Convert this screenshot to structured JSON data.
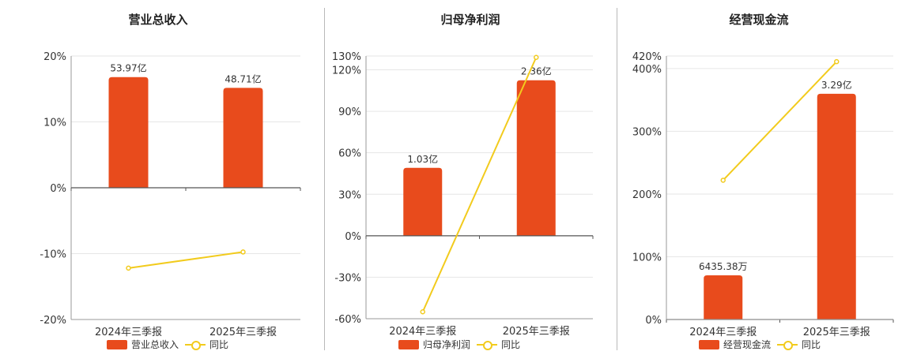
{
  "chart_data": [
    {
      "type": "bar",
      "title": "营业总收入",
      "categories": [
        "2024年三季报",
        "2025年三季报"
      ],
      "series": [
        {
          "name": "营业总收入",
          "type": "bar",
          "values": [
            53.97,
            48.71
          ],
          "labels": [
            "53.97亿",
            "48.71亿"
          ],
          "axis": "amount"
        },
        {
          "name": "同比",
          "type": "line",
          "values": [
            -12.2,
            -9.75
          ],
          "axis": "percent"
        }
      ],
      "y_ticks": [
        "20%",
        "10%",
        "0%",
        "-10%",
        "-20%"
      ],
      "ylim": [
        -20,
        20
      ],
      "grid": true,
      "legend": "bottom"
    },
    {
      "type": "bar",
      "title": "归母净利润",
      "categories": [
        "2024年三季报",
        "2025年三季报"
      ],
      "series": [
        {
          "name": "归母净利润",
          "type": "bar",
          "values": [
            1.03,
            2.36
          ],
          "labels": [
            "1.03亿",
            "2.36亿"
          ],
          "axis": "amount"
        },
        {
          "name": "同比",
          "type": "line",
          "values": [
            -55,
            129
          ],
          "axis": "percent"
        }
      ],
      "y_ticks": [
        "130%",
        "120%",
        "90%",
        "60%",
        "30%",
        "0%",
        "-30%",
        "-60%"
      ],
      "ylim": [
        -60,
        130
      ],
      "grid": true,
      "legend": "bottom"
    },
    {
      "type": "bar",
      "title": "经营现金流",
      "categories": [
        "2024年三季报",
        "2025年三季报"
      ],
      "series": [
        {
          "name": "经营现金流",
          "type": "bar",
          "values": [
            0.6435,
            3.29
          ],
          "labels": [
            "6435.38万",
            "3.29亿"
          ],
          "axis": "amount"
        },
        {
          "name": "同比",
          "type": "line",
          "values": [
            222,
            411
          ],
          "axis": "percent"
        }
      ],
      "y_ticks": [
        "420%",
        "400%",
        "300%",
        "200%",
        "100%",
        "0%"
      ],
      "ylim": [
        0,
        420
      ],
      "grid": true,
      "legend": "bottom"
    }
  ],
  "colors": {
    "bar": "#e84b1c",
    "line": "#f2cb1d",
    "grid": "#e6e6e6",
    "axis": "#555555"
  },
  "legend_line_label": "同比"
}
